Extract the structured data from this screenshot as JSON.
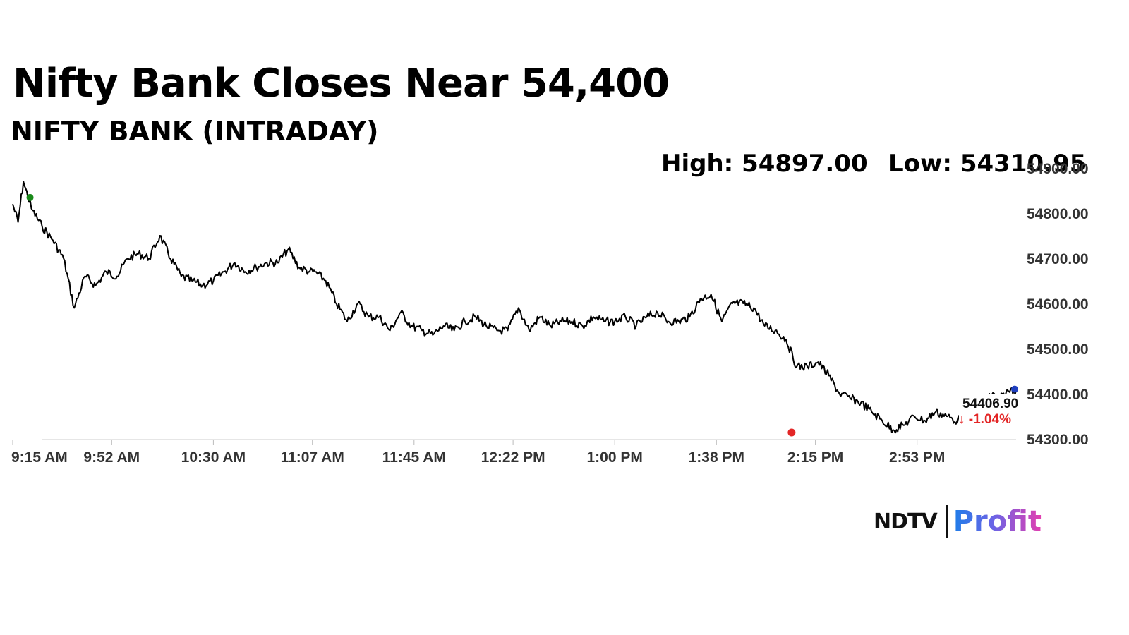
{
  "header": {
    "title": "Nifty Bank Closes Near 54,400",
    "subtitle": "NIFTY BANK (INTRADAY)",
    "high_text": "High: 54897.00",
    "low_text": "Low: 54310.95"
  },
  "logo": {
    "brand": "NDTV",
    "product": "Profit"
  },
  "colors": {
    "line": "#000000",
    "high_marker": "#1a8a1a",
    "low_marker": "#e32626",
    "close_marker": "#1f3fbf",
    "change": "#e32626",
    "axis_text": "#333333"
  },
  "chart_data": {
    "type": "line",
    "title": "NIFTY BANK (INTRADAY)",
    "xlabel": "",
    "ylabel": "",
    "ylim": [
      54300,
      54900
    ],
    "x_ticks": [
      "9:15 AM",
      "9:52 AM",
      "10:30 AM",
      "11:07 AM",
      "11:45 AM",
      "12:22 PM",
      "1:00 PM",
      "1:38 PM",
      "2:15 PM",
      "2:53 PM"
    ],
    "y_ticks": [
      "54300.00",
      "54400.00",
      "54500.00",
      "54600.00",
      "54700.00",
      "54800.00",
      "54900.00"
    ],
    "series": [
      {
        "name": "",
        "x": [
          "9:15 AM",
          "9:17 AM",
          "9:19 AM",
          "9:22 AM",
          "9:26 AM",
          "9:30 AM",
          "9:34 AM",
          "9:38 AM",
          "9:42 AM",
          "9:46 AM",
          "9:50 AM",
          "9:54 AM",
          "9:58 AM",
          "10:02 AM",
          "10:06 AM",
          "10:10 AM",
          "10:14 AM",
          "10:18 AM",
          "10:22 AM",
          "10:26 AM",
          "10:30 AM",
          "10:34 AM",
          "10:38 AM",
          "10:42 AM",
          "10:46 AM",
          "10:50 AM",
          "10:54 AM",
          "10:58 AM",
          "11:02 AM",
          "11:06 AM",
          "11:08 AM",
          "11:12 AM",
          "11:16 AM",
          "11:20 AM",
          "11:24 AM",
          "11:28 AM",
          "11:32 AM",
          "11:36 AM",
          "11:40 AM",
          "11:44 AM",
          "11:48 AM",
          "11:52 AM",
          "11:56 AM",
          "12:00 PM",
          "12:04 PM",
          "12:08 PM",
          "12:12 PM",
          "12:16 PM",
          "12:20 PM",
          "12:24 PM",
          "12:28 PM",
          "12:32 PM",
          "12:36 PM",
          "12:40 PM",
          "12:44 PM",
          "12:48 PM",
          "12:52 PM",
          "12:56 PM",
          "1:00 PM",
          "1:04 PM",
          "1:08 PM",
          "1:12 PM",
          "1:16 PM",
          "1:20 PM",
          "1:24 PM",
          "1:28 PM",
          "1:32 PM",
          "1:36 PM",
          "1:40 PM",
          "1:44 PM",
          "1:48 PM",
          "1:52 PM",
          "1:56 PM",
          "2:00 PM",
          "2:04 PM",
          "2:08 PM",
          "2:12 PM",
          "2:16 PM",
          "2:20 PM",
          "2:24 PM",
          "2:28 PM",
          "2:32 PM",
          "2:36 PM",
          "2:40 PM",
          "2:44 PM",
          "2:48 PM",
          "2:52 PM",
          "2:56 PM",
          "3:00 PM",
          "3:04 PM",
          "3:08 PM",
          "3:12 PM",
          "3:16 PM",
          "3:20 PM",
          "3:24 PM",
          "3:28 PM",
          "3:30 PM"
        ],
        "values": [
          54820,
          54780,
          54870,
          54810,
          54770,
          54740,
          54700,
          54590,
          54660,
          54640,
          54670,
          54660,
          54700,
          54710,
          54700,
          54750,
          54700,
          54660,
          54650,
          54640,
          54650,
          54670,
          54690,
          54670,
          54680,
          54690,
          54690,
          54720,
          54680,
          54670,
          54670,
          54650,
          54600,
          54560,
          54600,
          54570,
          54570,
          54540,
          54580,
          54550,
          54540,
          54530,
          54550,
          54540,
          54560,
          54570,
          54550,
          54540,
          54540,
          54590,
          54540,
          54570,
          54550,
          54560,
          54560,
          54550,
          54570,
          54560,
          54560,
          54570,
          54550,
          54570,
          54580,
          54560,
          54560,
          54570,
          54610,
          54620,
          54560,
          54600,
          54600,
          54590,
          54550,
          54540,
          54520,
          54460,
          54460,
          54470,
          54440,
          54400,
          54390,
          54380,
          54360,
          54340,
          54320,
          54330,
          54350,
          54340,
          54360,
          54350,
          54340,
          54360,
          54370,
          54400,
          54390,
          54410,
          54406.9
        ]
      }
    ],
    "annotations": {
      "high": "High: 54897.00",
      "low": "Low: 54310.95",
      "last_price": "54406.90",
      "change": "↓ -1.04%"
    }
  }
}
